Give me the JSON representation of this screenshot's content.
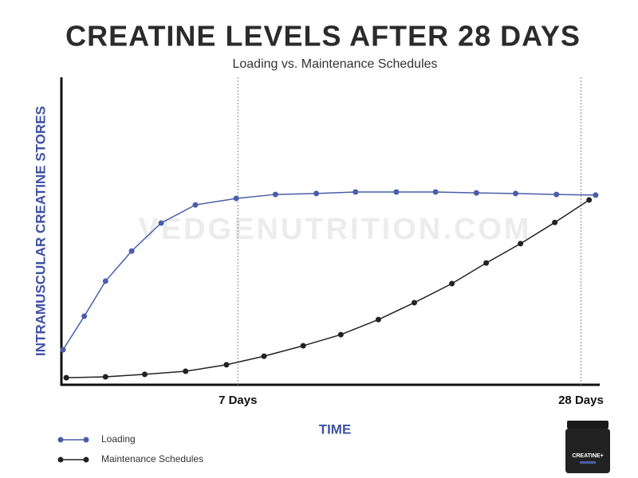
{
  "chart_data": {
    "type": "line",
    "title": "CREATINE LEVELS AFTER 28 DAYS",
    "subtitle": "Loading vs. Maintenance Schedules",
    "x_label": "TIME",
    "y_label": "INTRAMUSCULAR CREATINE STORES",
    "watermark": "VEDGENUTRITION.COM",
    "image_label": "CREATINE+",
    "xlim": [
      -3.8,
      29.1
    ],
    "ylim": [
      0,
      100
    ],
    "xticks": [
      {
        "value": 7,
        "label": "7 Days"
      },
      {
        "value": 28,
        "label": "28 Days"
      }
    ],
    "series": [
      {
        "name": "Loading",
        "color": "#4a5ea8",
        "x": [
          -3.7,
          -2.4,
          -1.1,
          0.5,
          2.3,
          4.4,
          6.9,
          9.3,
          11.8,
          14.2,
          16.7,
          19.1,
          21.6,
          24.0,
          26.5,
          28.9
        ],
        "values": [
          11.4,
          22.3,
          33.7,
          43.5,
          52.6,
          58.5,
          60.6,
          61.9,
          62.2,
          62.7,
          62.7,
          62.7,
          62.4,
          62.2,
          61.9,
          61.7
        ]
      },
      {
        "name": "Maintenance Schedules",
        "color": "#222222",
        "x": [
          -3.5,
          -1.1,
          1.3,
          3.8,
          6.3,
          8.6,
          11.0,
          13.3,
          15.6,
          17.8,
          20.1,
          22.2,
          24.3,
          26.4,
          28.5
        ],
        "values": [
          2.3,
          2.6,
          3.4,
          4.4,
          6.5,
          9.3,
          12.7,
          16.3,
          21.2,
          26.7,
          32.9,
          39.6,
          45.9,
          52.8,
          60.1
        ]
      }
    ]
  }
}
